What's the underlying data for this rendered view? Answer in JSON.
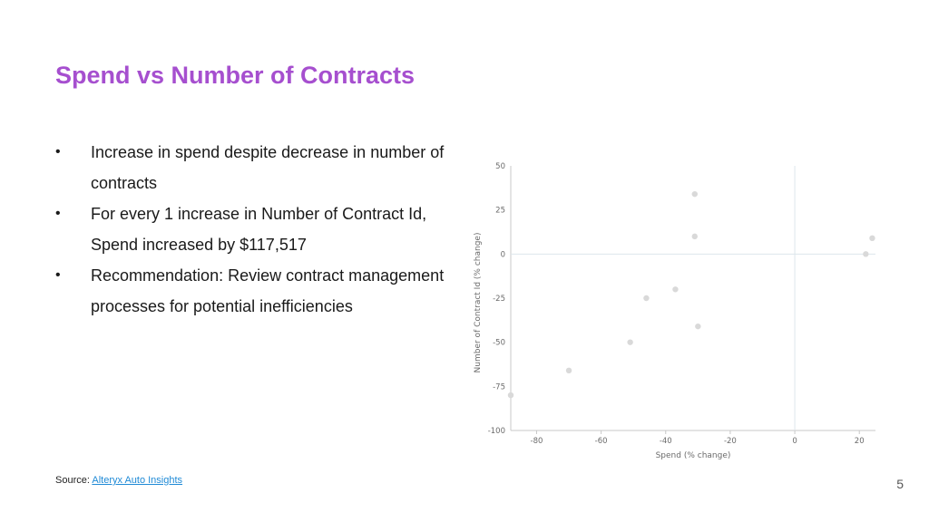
{
  "slide": {
    "title": "Spend vs Number of Contracts",
    "title_color": "#a64fcf",
    "bullets": [
      "Increase in spend despite decrease in number of contracts",
      "For every 1 increase in Number of Contract Id, Spend increased by $117,517",
      "Recommendation: Review contract management processes for potential inefficiencies"
    ],
    "bullet_symbol": "•",
    "source_label": "Source:",
    "source_link": "Alteryx Auto Insights",
    "page_number": "5"
  },
  "chart_data": {
    "type": "scatter",
    "xlabel": "Spend (% change)",
    "ylabel": "Number of Contract Id (% change)",
    "xlim": [
      -88,
      25
    ],
    "ylim": [
      -100,
      50
    ],
    "xticks": [
      -80,
      -60,
      -40,
      -20,
      0,
      20
    ],
    "yticks": [
      50,
      25,
      0,
      -25,
      -50,
      -75,
      -100
    ],
    "grid": false,
    "zero_lines": true,
    "point_color": "#d9d9d9",
    "points": [
      {
        "x": -88,
        "y": -80
      },
      {
        "x": -70,
        "y": -66
      },
      {
        "x": -51,
        "y": -50
      },
      {
        "x": -46,
        "y": -25
      },
      {
        "x": -37,
        "y": -20
      },
      {
        "x": -31,
        "y": 34
      },
      {
        "x": -31,
        "y": 10
      },
      {
        "x": -30,
        "y": -41
      },
      {
        "x": 22,
        "y": 0
      },
      {
        "x": 24,
        "y": 9
      }
    ]
  }
}
